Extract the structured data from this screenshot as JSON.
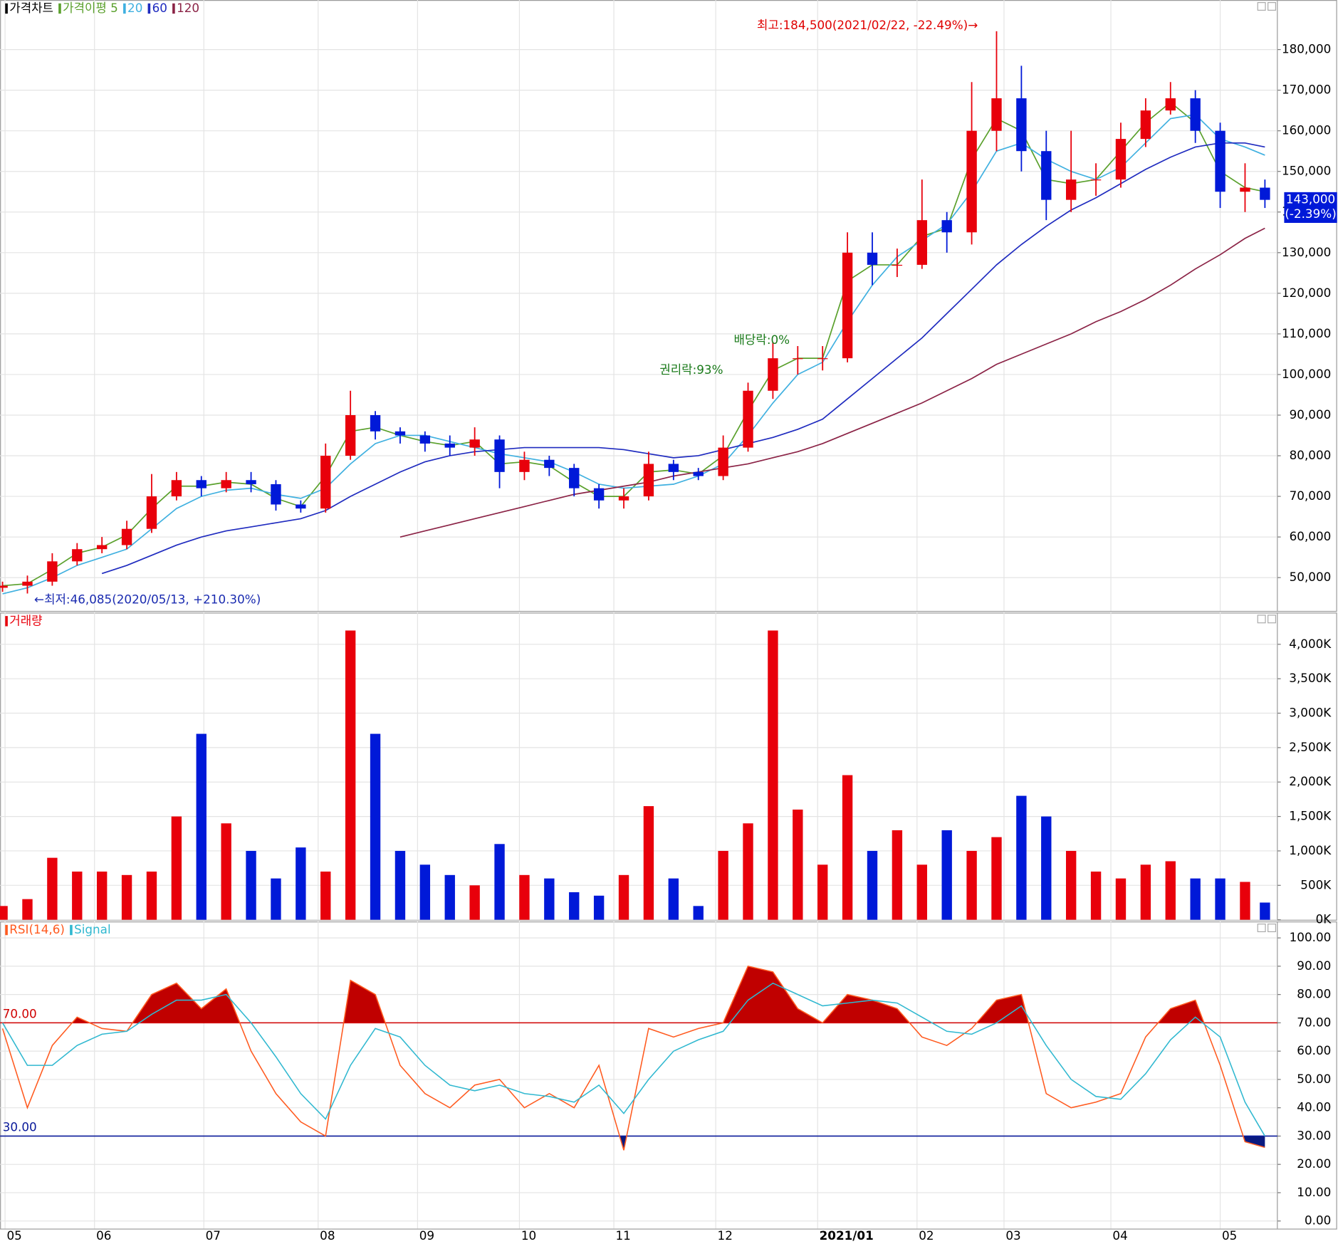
{
  "chart_data": [
    {
      "type": "candlestick",
      "title": "가격차트",
      "x": [
        0,
        5,
        10,
        15,
        20,
        25,
        30,
        35,
        40,
        45,
        50,
        55,
        60,
        65,
        70,
        75,
        80,
        85,
        90,
        95,
        100,
        105,
        110,
        115,
        120,
        125,
        130,
        135,
        140,
        145,
        150,
        155,
        160,
        165,
        170,
        175,
        180,
        185,
        190,
        195,
        200,
        205,
        210,
        215,
        220,
        225,
        230,
        235,
        240,
        245,
        250,
        254
      ],
      "open": [
        47500,
        48000,
        49000,
        54000,
        57000,
        58000,
        62000,
        70000,
        74000,
        72000,
        74000,
        73000,
        68000,
        67000,
        80000,
        90000,
        86000,
        85000,
        83000,
        82000,
        84000,
        76000,
        79000,
        77000,
        72000,
        69000,
        70000,
        78000,
        76000,
        75000,
        82000,
        96000,
        104000,
        104000,
        104000,
        130000,
        127000,
        127000,
        138000,
        135000,
        160000,
        168000,
        155000,
        143000,
        148000,
        148000,
        158000,
        165000,
        168000,
        160000,
        145000,
        146000
      ],
      "high": [
        49000,
        50500,
        56000,
        58500,
        60000,
        64000,
        75500,
        76000,
        75000,
        76000,
        76000,
        74000,
        69000,
        83000,
        96000,
        91000,
        87000,
        86000,
        85000,
        87000,
        85000,
        81000,
        80000,
        78000,
        73000,
        72000,
        81000,
        79000,
        77000,
        85000,
        98000,
        108000,
        107000,
        107000,
        135000,
        135000,
        131000,
        148000,
        140000,
        172000,
        184500,
        176000,
        160000,
        160000,
        152000,
        162000,
        168000,
        172000,
        170000,
        162000,
        152000,
        148000
      ],
      "low": [
        46500,
        46085,
        48000,
        53000,
        56000,
        57000,
        61000,
        69000,
        70000,
        71000,
        71000,
        66500,
        66000,
        66000,
        79000,
        84000,
        83000,
        81000,
        80000,
        80000,
        72000,
        74000,
        75000,
        70000,
        67000,
        67000,
        69000,
        74000,
        74000,
        74000,
        81000,
        94000,
        100000,
        101000,
        103000,
        122000,
        124000,
        126000,
        130000,
        132000,
        155000,
        150000,
        138000,
        140000,
        144000,
        146000,
        156000,
        164000,
        157000,
        141000,
        140000,
        141000
      ],
      "close": [
        48000,
        49000,
        54000,
        57000,
        58000,
        62000,
        70000,
        74000,
        72000,
        74000,
        73000,
        68000,
        67000,
        80000,
        90000,
        86000,
        85000,
        83000,
        82000,
        84000,
        76000,
        79000,
        77000,
        72000,
        69000,
        70000,
        78000,
        76000,
        75000,
        82000,
        96000,
        104000,
        104000,
        104000,
        130000,
        127000,
        127000,
        138000,
        135000,
        160000,
        168000,
        155000,
        143000,
        148000,
        148000,
        158000,
        165000,
        168000,
        160000,
        145000,
        146000,
        143000
      ],
      "up_color": "#e8000b",
      "down_color": "#0019d8",
      "series": [
        {
          "name": "가격이평 5",
          "color": "#5aa02c",
          "values": [
            48000,
            48500,
            52000,
            56000,
            57500,
            60500,
            67000,
            72500,
            72500,
            73500,
            73000,
            69500,
            67500,
            75000,
            86000,
            87000,
            85000,
            83500,
            82500,
            83500,
            78000,
            78500,
            77500,
            73500,
            70000,
            70000,
            76000,
            76500,
            75500,
            80000,
            91000,
            101000,
            104000,
            104000,
            123000,
            127000,
            127000,
            134000,
            136000,
            153000,
            163000,
            160000,
            148000,
            147000,
            148000,
            155000,
            162000,
            167000,
            162000,
            150000,
            146000,
            145000
          ]
        },
        {
          "name": "20",
          "color": "#3fb0e0",
          "values": [
            46000,
            47500,
            50000,
            53000,
            55000,
            57000,
            62000,
            67000,
            70000,
            71500,
            72000,
            70500,
            69500,
            72000,
            78000,
            83000,
            85000,
            85000,
            83500,
            82000,
            80500,
            79500,
            78500,
            76000,
            73000,
            72000,
            72500,
            73000,
            75000,
            78000,
            85000,
            93000,
            100000,
            103000,
            113000,
            122000,
            129000,
            133000,
            137000,
            145000,
            155000,
            157000,
            153000,
            150000,
            148000,
            151000,
            157000,
            163000,
            164000,
            158000,
            156000,
            154000
          ]
        },
        {
          "name": "60",
          "color": "#1f2bbf",
          "values": [
            null,
            null,
            null,
            null,
            51000,
            53000,
            55500,
            58000,
            60000,
            61500,
            62500,
            63500,
            64500,
            66500,
            70000,
            73000,
            76000,
            78500,
            80000,
            81000,
            81500,
            82000,
            82000,
            82000,
            82000,
            81500,
            80500,
            79500,
            80000,
            81500,
            83000,
            84500,
            86500,
            89000,
            94000,
            99000,
            104000,
            109000,
            115000,
            121000,
            127000,
            132000,
            136500,
            140500,
            143500,
            147000,
            150500,
            153500,
            156000,
            157000,
            157000,
            156000
          ]
        },
        {
          "name": "120",
          "color": "#8b2346",
          "values": [
            null,
            null,
            null,
            null,
            null,
            null,
            null,
            null,
            null,
            null,
            null,
            null,
            null,
            null,
            null,
            null,
            60000,
            61500,
            63000,
            64500,
            66000,
            67500,
            69000,
            70500,
            71500,
            72500,
            73500,
            75000,
            76000,
            77000,
            78000,
            79500,
            81000,
            83000,
            85500,
            88000,
            90500,
            93000,
            96000,
            99000,
            102500,
            105000,
            107500,
            110000,
            113000,
            115500,
            118500,
            122000,
            126000,
            129500,
            133500,
            136000
          ]
        }
      ],
      "xlim": [
        -0.5,
        256.5
      ],
      "ylim": [
        41800,
        192200
      ],
      "yticks": [
        {
          "value": 50000,
          "label": "50,000"
        },
        {
          "value": 60000,
          "label": "60,000"
        },
        {
          "value": 70000,
          "label": "70,000"
        },
        {
          "value": 80000,
          "label": "80,000"
        },
        {
          "value": 90000,
          "label": "90,000"
        },
        {
          "value": 100000,
          "label": "100,000"
        },
        {
          "value": 110000,
          "label": "110,000"
        },
        {
          "value": 120000,
          "label": "120,000"
        },
        {
          "value": 130000,
          "label": "130,000"
        },
        {
          "value": 140000,
          "label": "140,000"
        },
        {
          "value": 150000,
          "label": "150,000"
        },
        {
          "value": 160000,
          "label": "160,000"
        },
        {
          "value": 170000,
          "label": "170,000"
        },
        {
          "value": 180000,
          "label": "180,000"
        }
      ],
      "annotations": [
        "최고:184,500(2021/02/22, -22.49%)→",
        "←최저:46,085(2020/05/13, +210.30%)",
        "권리락:93%",
        "배당락:0%"
      ],
      "last_label": "143,000",
      "last_change": "(-2.39%)",
      "grid": true
    },
    {
      "type": "bar",
      "series": [
        {
          "name": "거래량",
          "color": "#e8000b",
          "values": [
            200,
            300,
            900,
            700,
            700,
            650,
            700,
            1500,
            2700,
            1400,
            1000,
            600,
            1050,
            700,
            4200,
            2700,
            1000,
            800,
            650,
            500,
            1100,
            650,
            600,
            400,
            350,
            650,
            1650,
            600,
            200,
            1000,
            1400,
            4200,
            1600,
            800,
            2100,
            1000,
            1300,
            800,
            1300,
            1000,
            1200,
            1800,
            1500,
            1000,
            700,
            600,
            800,
            850,
            600,
            600,
            550,
            250
          ]
        }
      ],
      "ylim": [
        0,
        4460
      ],
      "yticks": [
        {
          "value": 0,
          "label": "0K"
        },
        {
          "value": 500,
          "label": "500K"
        },
        {
          "value": 1000,
          "label": "1,000K"
        },
        {
          "value": 1500,
          "label": "1,500K"
        },
        {
          "value": 2000,
          "label": "2,000K"
        },
        {
          "value": 2500,
          "label": "2,500K"
        },
        {
          "value": 3000,
          "label": "3,000K"
        },
        {
          "value": 3500,
          "label": "3,500K"
        },
        {
          "value": 4000,
          "label": "4,000K"
        }
      ],
      "grid": true
    },
    {
      "type": "line",
      "series": [
        {
          "name": "RSI(14,6)",
          "color": "#ff5a1f",
          "values": [
            68,
            40,
            62,
            72,
            68,
            67,
            80,
            84,
            75,
            82,
            60,
            45,
            35,
            30,
            85,
            80,
            55,
            45,
            40,
            48,
            50,
            40,
            45,
            40,
            55,
            25,
            68,
            65,
            68,
            70,
            90,
            88,
            75,
            70,
            80,
            78,
            75,
            65,
            62,
            68,
            78,
            80,
            45,
            40,
            42,
            45,
            65,
            75,
            78,
            55,
            28,
            26
          ]
        },
        {
          "name": "Signal",
          "color": "#30b8d0",
          "values": [
            70,
            55,
            55,
            62,
            66,
            67,
            73,
            78,
            78,
            80,
            70,
            58,
            45,
            36,
            55,
            68,
            65,
            55,
            48,
            46,
            48,
            45,
            44,
            42,
            48,
            38,
            50,
            60,
            64,
            67,
            78,
            84,
            80,
            76,
            77,
            78,
            77,
            72,
            67,
            66,
            70,
            76,
            62,
            50,
            44,
            43,
            52,
            64,
            72,
            65,
            42,
            30
          ]
        }
      ],
      "reference_lines": [
        {
          "value": 70,
          "label": "70.00",
          "color": "#d00000",
          "fill": "#c00000"
        },
        {
          "value": 30,
          "label": "30.00",
          "color": "#0a1a9a",
          "fill": "#0a1a80"
        }
      ],
      "ylim": [
        -2.7,
        105.8
      ],
      "yticks": [
        {
          "value": 0,
          "label": "0.00"
        },
        {
          "value": 10,
          "label": "10.00"
        },
        {
          "value": 20,
          "label": "20.00"
        },
        {
          "value": 30,
          "label": "30.00"
        },
        {
          "value": 40,
          "label": "40.00"
        },
        {
          "value": 50,
          "label": "50.00"
        },
        {
          "value": 60,
          "label": "60.00"
        },
        {
          "value": 70,
          "label": "70.00"
        },
        {
          "value": 80,
          "label": "80.00"
        },
        {
          "value": 90,
          "label": "90.00"
        },
        {
          "value": 100,
          "label": "100.00"
        }
      ],
      "xticks": [
        {
          "value": 0.5,
          "label": "05"
        },
        {
          "value": 18.5,
          "label": "06"
        },
        {
          "value": 40.5,
          "label": "07"
        },
        {
          "value": 63.5,
          "label": "08"
        },
        {
          "value": 83.5,
          "label": "09"
        },
        {
          "value": 104,
          "label": "10"
        },
        {
          "value": 123,
          "label": "11"
        },
        {
          "value": 143.5,
          "label": "12"
        },
        {
          "value": 164,
          "label": "2021/01"
        },
        {
          "value": 184,
          "label": "02"
        },
        {
          "value": 201.5,
          "label": "03"
        },
        {
          "value": 223,
          "label": "04"
        },
        {
          "value": 245,
          "label": "05"
        }
      ],
      "grid": true
    }
  ]
}
